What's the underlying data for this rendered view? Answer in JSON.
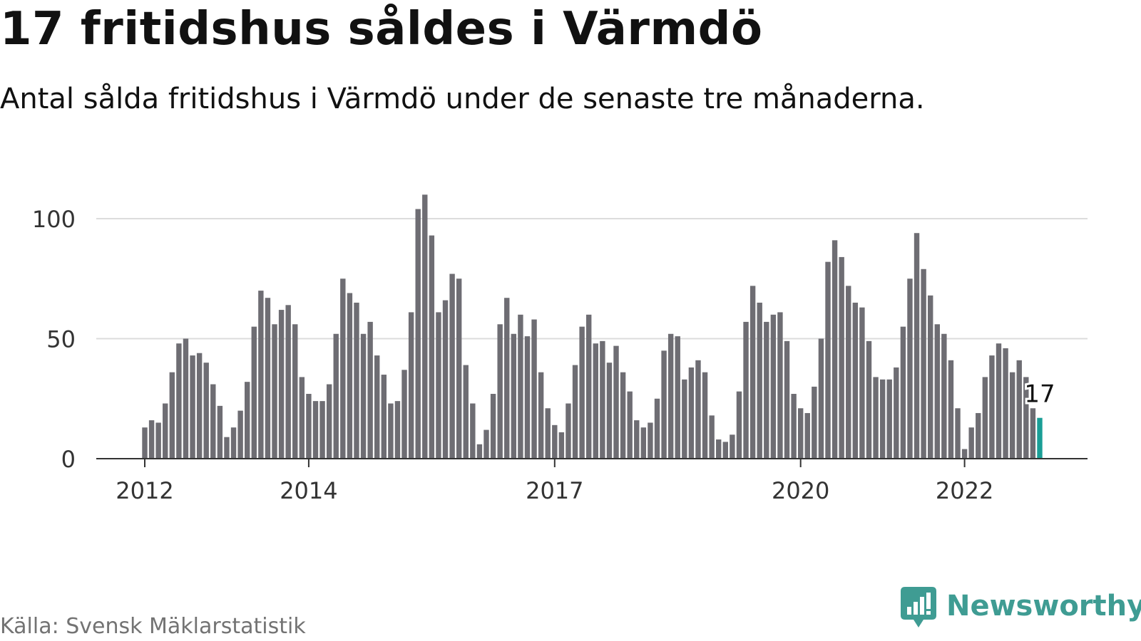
{
  "title": "17 fritidshus såldes i Värmdö",
  "subtitle": "Antal sålda fritidshus i Värmdö under de senaste tre månaderna.",
  "source": "Källa: Svensk Mäklarstatistik",
  "brand": {
    "name": "Newsworthy",
    "icon": "newsworthy-logo-icon",
    "color": "#3f9c93"
  },
  "chart_data": {
    "type": "bar",
    "x_start": "2012-01",
    "x_interval": "month",
    "values": [
      13,
      16,
      15,
      23,
      36,
      48,
      50,
      43,
      44,
      40,
      31,
      22,
      9,
      13,
      20,
      32,
      55,
      70,
      67,
      56,
      62,
      64,
      56,
      34,
      27,
      24,
      24,
      31,
      52,
      75,
      69,
      65,
      52,
      57,
      43,
      35,
      23,
      24,
      37,
      61,
      104,
      110,
      93,
      61,
      66,
      77,
      75,
      39,
      23,
      6,
      12,
      27,
      56,
      67,
      52,
      60,
      51,
      58,
      36,
      21,
      14,
      11,
      23,
      39,
      55,
      60,
      48,
      49,
      40,
      47,
      36,
      28,
      16,
      13,
      15,
      25,
      45,
      52,
      51,
      33,
      38,
      41,
      36,
      18,
      8,
      7,
      10,
      28,
      57,
      72,
      65,
      57,
      60,
      61,
      49,
      27,
      21,
      19,
      30,
      50,
      82,
      91,
      84,
      72,
      65,
      63,
      49,
      34,
      33,
      33,
      38,
      55,
      75,
      94,
      79,
      68,
      56,
      52,
      41,
      21,
      4,
      13,
      19,
      34,
      43,
      48,
      46,
      36,
      41,
      34,
      21,
      17
    ],
    "highlight": {
      "value": 17,
      "label": "17",
      "color": "#1a9e96"
    },
    "bar_color": "#6e6d73",
    "x_ticks": [
      {
        "label": "2012",
        "x": 2012.0
      },
      {
        "label": "2014",
        "x": 2014.0
      },
      {
        "label": "2017",
        "x": 2017.0
      },
      {
        "label": "2020",
        "x": 2020.0
      },
      {
        "label": "2022",
        "x": 2022.0
      }
    ],
    "y_ticks": [
      0,
      50,
      100
    ],
    "ylim": [
      0,
      110
    ],
    "grid": true,
    "xlabel": "",
    "ylabel": ""
  }
}
